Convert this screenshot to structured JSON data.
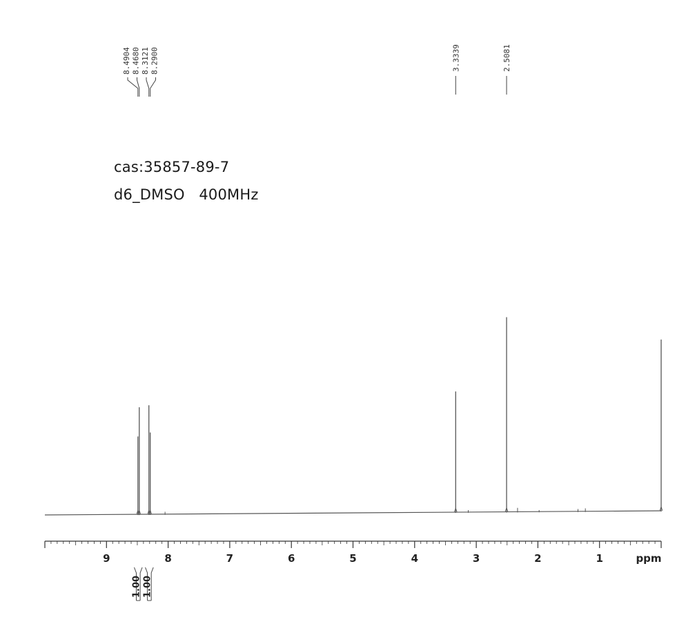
{
  "annotations": {
    "cas": "cas:35857-89-7",
    "solvent_freq": "d6_DMSO   400MHz"
  },
  "chart_data": {
    "type": "line",
    "title": "",
    "xlabel": "ppm",
    "ylabel": "",
    "xlim": [
      10.0,
      0.0
    ],
    "x_reversed": true,
    "xticks": [
      9,
      8,
      7,
      6,
      5,
      4,
      3,
      2,
      1
    ],
    "peaks": [
      {
        "ppm": 8.4904,
        "intensity": 0.4
      },
      {
        "ppm": 8.468,
        "intensity": 0.55
      },
      {
        "ppm": 8.3121,
        "intensity": 0.56
      },
      {
        "ppm": 8.29,
        "intensity": 0.42
      },
      {
        "ppm": 8.05,
        "intensity": 0.012
      },
      {
        "ppm": 3.3339,
        "intensity": 0.62
      },
      {
        "ppm": 3.13,
        "intensity": 0.01
      },
      {
        "ppm": 2.5081,
        "intensity": 1.0
      },
      {
        "ppm": 2.33,
        "intensity": 0.02
      },
      {
        "ppm": 1.98,
        "intensity": 0.008
      },
      {
        "ppm": 1.35,
        "intensity": 0.012
      },
      {
        "ppm": 1.23,
        "intensity": 0.015
      },
      {
        "ppm": 0.0,
        "intensity": 0.88
      }
    ],
    "peak_labels": [
      "8.4904",
      "8.4680",
      "8.3121",
      "8.2900",
      "3.3339",
      "2.5081"
    ],
    "integrals": [
      {
        "from": 8.55,
        "to": 8.42,
        "value": "1.00"
      },
      {
        "from": 8.37,
        "to": 8.24,
        "value": "1.00"
      }
    ],
    "color": "#555555"
  }
}
